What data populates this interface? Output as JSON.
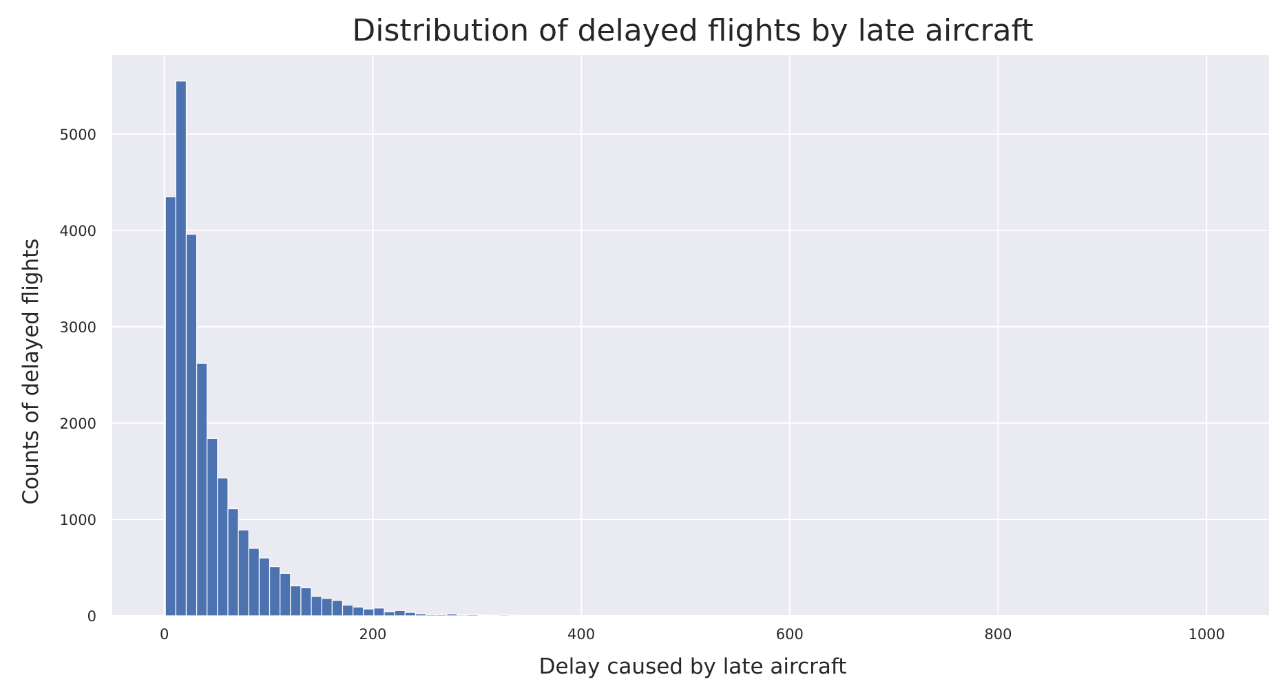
{
  "chart_data": {
    "type": "bar",
    "title": "Distribution of delayed flights by late aircraft",
    "xlabel": "Delay caused by late aircraft",
    "ylabel": "Counts of delayed flights",
    "xlim": [
      -50,
      1060
    ],
    "ylim": [
      0,
      5820
    ],
    "xticks": [
      0,
      200,
      400,
      600,
      800,
      1000
    ],
    "yticks": [
      0,
      1000,
      2000,
      3000,
      4000,
      5000
    ],
    "grid": true,
    "colors": {
      "bar": "#4c72b0",
      "background": "#eaeaf2",
      "grid": "#ffffff",
      "text": "#262626"
    },
    "bin_width": 10,
    "bin_start": 1,
    "values": [
      4350,
      5550,
      3960,
      2620,
      1840,
      1430,
      1110,
      890,
      700,
      600,
      510,
      440,
      310,
      290,
      200,
      180,
      160,
      110,
      90,
      70,
      80,
      40,
      55,
      35,
      20,
      12,
      12,
      18,
      10,
      12,
      8,
      5,
      10,
      5,
      3,
      2,
      2,
      2,
      1,
      1
    ]
  }
}
